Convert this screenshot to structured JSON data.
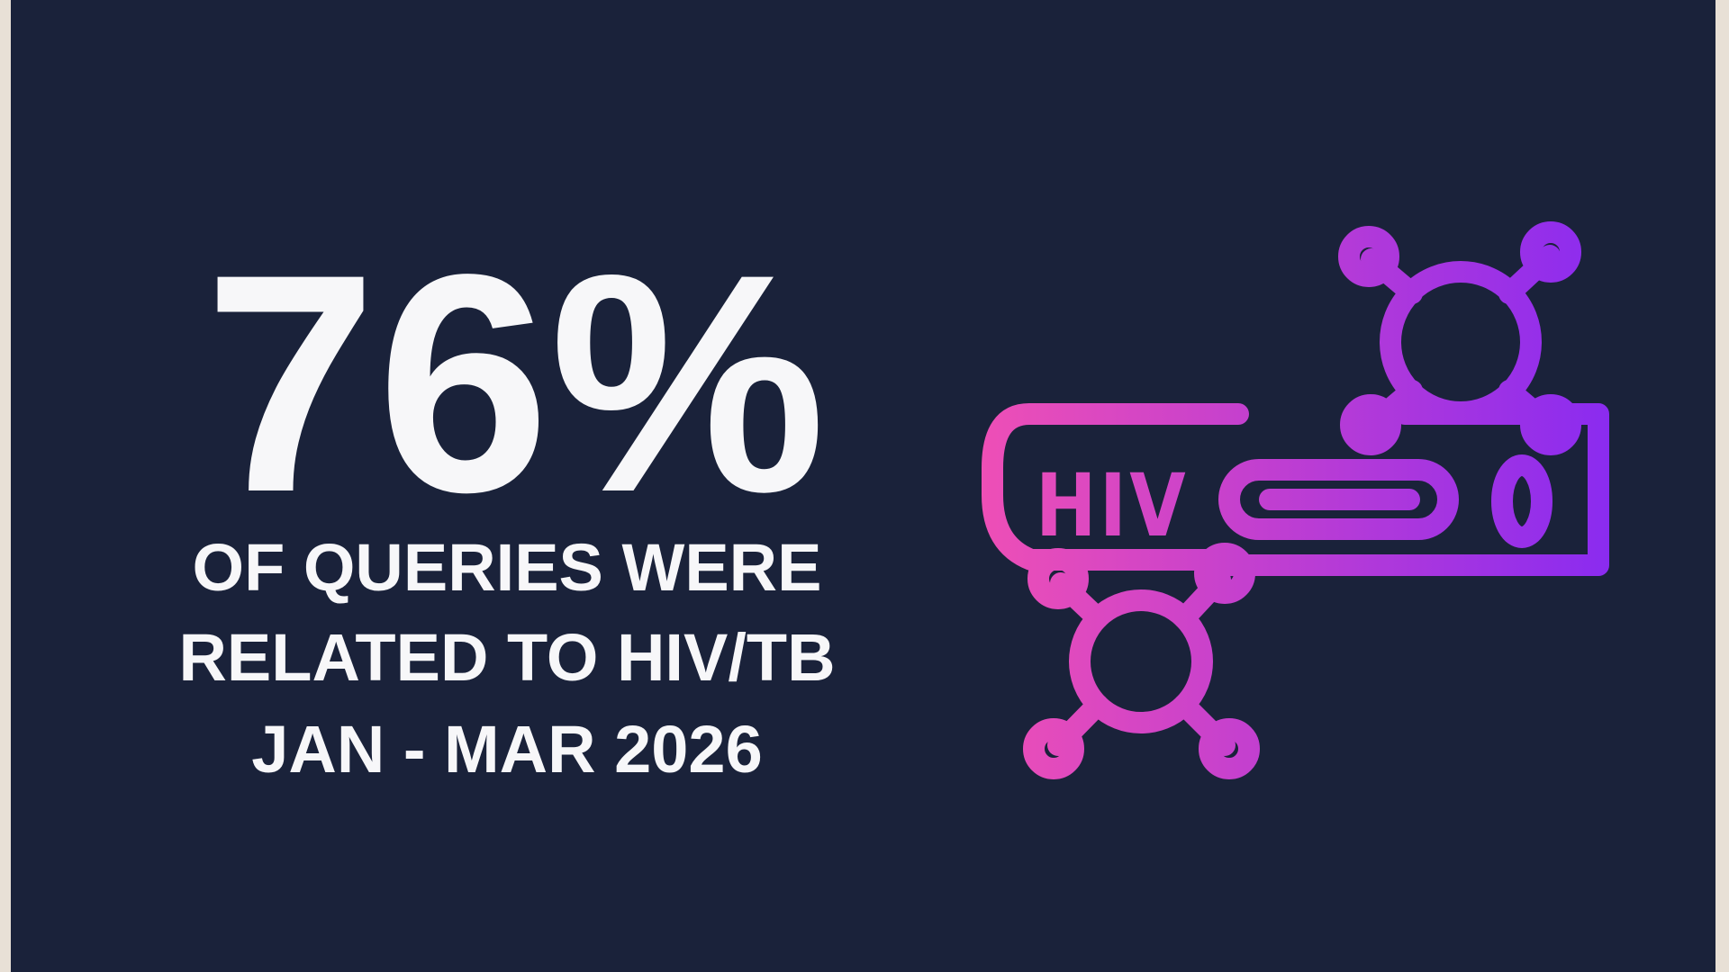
{
  "stat": {
    "value": "76%",
    "caption_lines": [
      "OF QUERIES WERE",
      "RELATED TO HIV/TB",
      "JAN - MAR 2026"
    ]
  },
  "icon": {
    "label": "HIV"
  }
}
